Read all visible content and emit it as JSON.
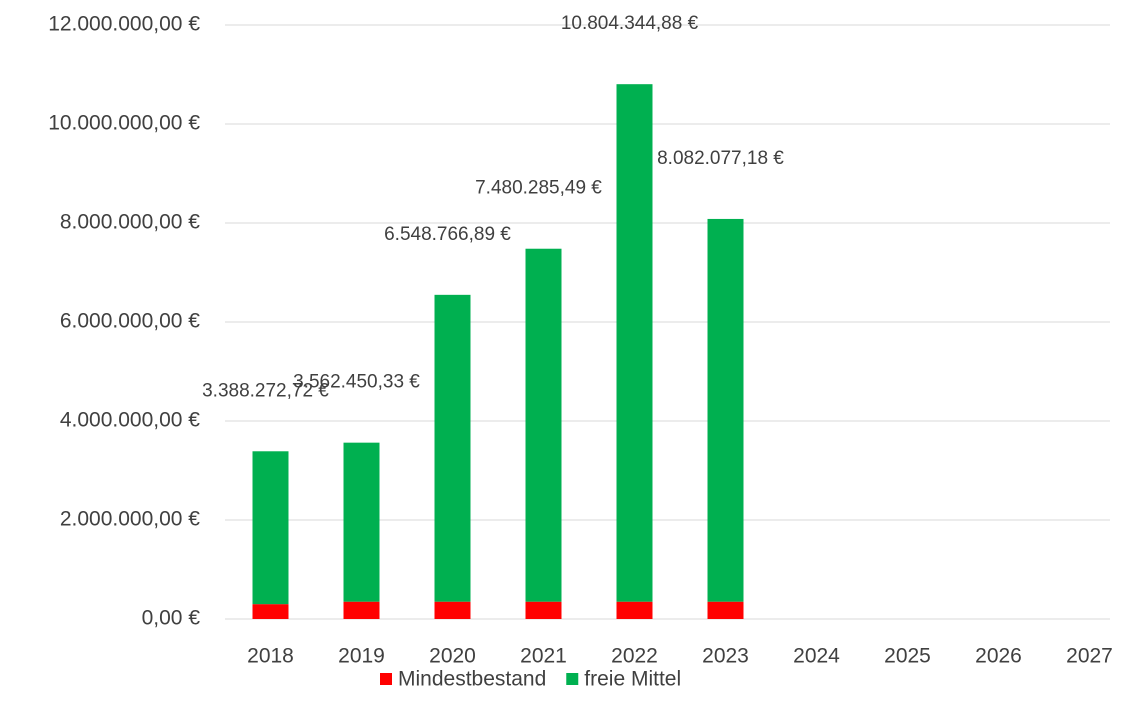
{
  "chart_data": {
    "type": "stacked_bar",
    "categories": [
      "2018",
      "2019",
      "2020",
      "2021",
      "2022",
      "2023",
      "2024",
      "2025",
      "2026",
      "2027"
    ],
    "series": [
      {
        "name": "Mindestbestand",
        "color": "#ff0000",
        "values": [
          300000,
          350000,
          350000,
          350000,
          350000,
          350000,
          null,
          null,
          null,
          null
        ]
      },
      {
        "name": "freie Mittel",
        "color": "#00b050",
        "values": [
          3088272.72,
          3212450.33,
          6198766.89,
          7130285.49,
          10454344.88,
          7732077.18,
          null,
          null,
          null,
          null
        ]
      }
    ],
    "totals": [
      3388272.72,
      3562450.33,
      6548766.89,
      7480285.49,
      10804344.88,
      8082077.18
    ],
    "total_labels": [
      "3.388.272,72 €",
      "3.562.450,33 €",
      "6.548.766,89 €",
      "7.480.285,49 €",
      "10.804.344,88 €",
      "8.082.077,18 €"
    ],
    "ylim": [
      0,
      12000000
    ],
    "yticks": [
      {
        "value": 0,
        "label": "0,00 €"
      },
      {
        "value": 2000000,
        "label": "2.000.000,00 €"
      },
      {
        "value": 4000000,
        "label": "4.000.000,00 €"
      },
      {
        "value": 6000000,
        "label": "6.000.000,00 €"
      },
      {
        "value": 8000000,
        "label": "8.000.000,00 €"
      },
      {
        "value": 10000000,
        "label": "10.000.000,00 €"
      },
      {
        "value": 12000000,
        "label": "12.000.000,00 €"
      }
    ],
    "grid": true,
    "legend": "bottom"
  }
}
